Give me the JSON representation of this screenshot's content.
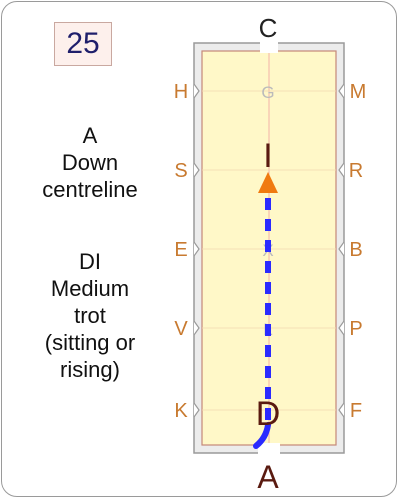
{
  "test_number": "25",
  "movement": {
    "letter": "A",
    "line1": "Down",
    "line2": "centreline",
    "gait_label": "DI",
    "gait_line1": "Medium",
    "gait_line2": "trot",
    "gait_line3": "(sitting or",
    "gait_line4": "rising)"
  },
  "arena": {
    "top_letter": "C",
    "bottom_letter": "A",
    "left_letters": [
      "H",
      "S",
      "E",
      "V",
      "K"
    ],
    "right_letters": [
      "M",
      "R",
      "B",
      "P",
      "F"
    ],
    "centre_letters": [
      "G",
      "I",
      "X",
      "L",
      "D"
    ],
    "colors": {
      "arena_fill": "#fff8c8",
      "arena_border": "#c58878",
      "surround_fill": "#ececec",
      "surround_border": "#9a9a9a",
      "side_letter": "#c87a30",
      "centre_letter_faint": "#bbbbbb",
      "highlight_letter": "#5a1a10",
      "path": "#2a2aff",
      "arrow": "#f07a10",
      "centreline": "#f0a0a0"
    }
  },
  "path": {
    "start_letter": "D",
    "end_letter": "I",
    "style": "dashed"
  }
}
